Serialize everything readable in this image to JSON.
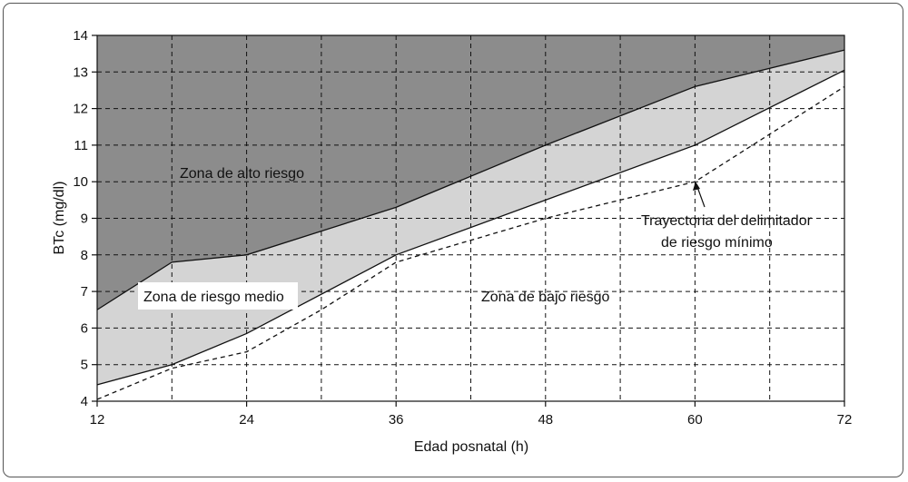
{
  "chart_data": {
    "type": "area",
    "title": "",
    "xlabel": "Edad posnatal (h)",
    "ylabel": "BTc (mg/dl)",
    "xlim": [
      12,
      72
    ],
    "ylim": [
      4,
      14
    ],
    "xticks": [
      "12",
      "24",
      "36",
      "48",
      "60",
      "72"
    ],
    "yticks": [
      "4",
      "5",
      "6",
      "7",
      "8",
      "9",
      "10",
      "11",
      "12",
      "13",
      "14"
    ],
    "grid": true,
    "series": [
      {
        "x": [
          12,
          18,
          24,
          36,
          48,
          60,
          72
        ],
        "values": [
          6.5,
          7.8,
          8.0,
          9.3,
          11.0,
          12.6,
          13.6
        ]
      },
      {
        "x": [
          12,
          18,
          24,
          36,
          48,
          60,
          72
        ],
        "values": [
          4.45,
          5.0,
          5.85,
          8.0,
          9.5,
          11.0,
          13.05
        ]
      },
      {
        "x": [
          12,
          18,
          24,
          30,
          36,
          48,
          60,
          66,
          72
        ],
        "values": [
          4.05,
          4.9,
          5.35,
          6.5,
          7.8,
          9.0,
          10.0,
          11.3,
          12.6
        ]
      }
    ],
    "annotations": {
      "high": "Zona de alto riesgo",
      "medium": "Zona de riesgo medio",
      "low": "Zona de bajo riesgo",
      "trajectory_line1": "Trayectoria del delimitador",
      "trajectory_line2": "de riesgo mínimo"
    },
    "colors": {
      "high_zone": "#8c8c8c",
      "medium_zone": "#d4d4d4",
      "low_zone": "#ffffff",
      "lines": "#111111"
    }
  }
}
